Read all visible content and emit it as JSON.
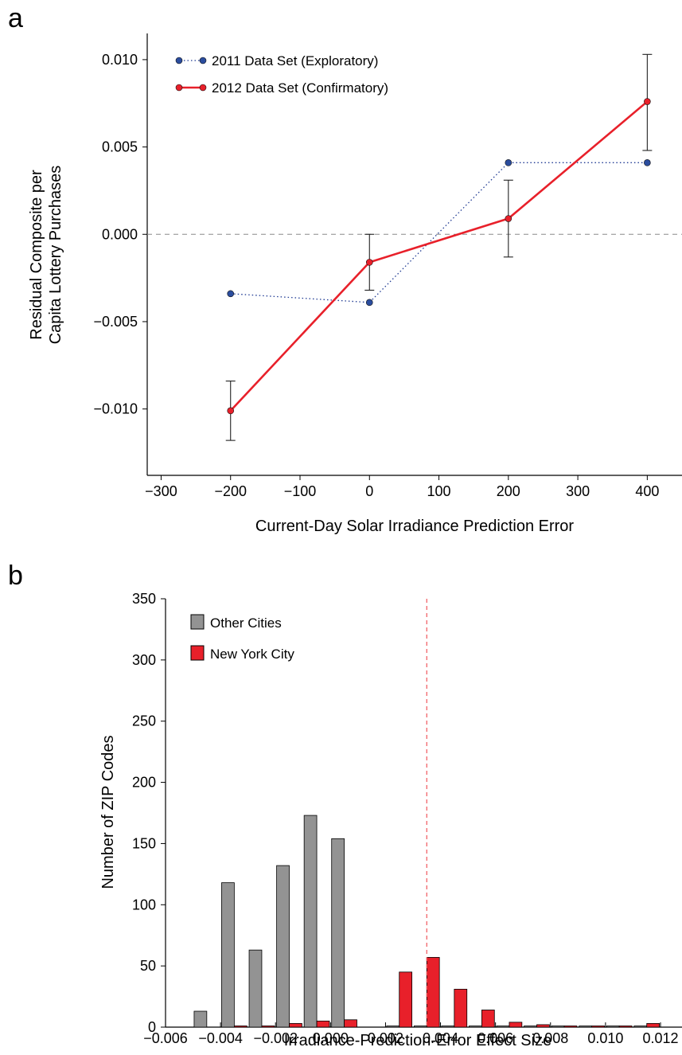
{
  "panel_a": {
    "label": "a",
    "chart_data": {
      "type": "line",
      "xlabel": "Current-Day Solar Irradiance Prediction Error",
      "ylabel": [
        "Residual Composite per",
        "Capita Lottery Purchases"
      ],
      "xlim": [
        -320,
        450
      ],
      "ylim": [
        -0.0138,
        0.0115
      ],
      "x_ticks": [
        -300,
        -200,
        -100,
        0,
        100,
        200,
        300,
        400
      ],
      "x_tick_labels": [
        "−300",
        "−200",
        "−100",
        "0",
        "100",
        "200",
        "300",
        "400"
      ],
      "y_ticks": [
        -0.01,
        -0.005,
        0,
        0.005,
        0.01
      ],
      "y_tick_labels": [
        "−0.010",
        "−0.005",
        "0.000",
        "0.005",
        "0.010"
      ],
      "reference_line_y": 0,
      "legend_position": "top-left",
      "series": [
        {
          "name": "2011 Data Set (Exploratory)",
          "style": "dotted",
          "color": "#1f3a93",
          "marker_fill": "#2b4d9e",
          "x": [
            -200,
            0,
            200,
            400
          ],
          "y": [
            -0.0034,
            -0.0039,
            0.0041,
            0.0041
          ]
        },
        {
          "name": "2012 Data Set (Confirmatory)",
          "style": "solid",
          "color": "#e8202a",
          "marker_fill": "#e8202a",
          "x": [
            -200,
            0,
            200,
            400
          ],
          "y": [
            -0.0101,
            -0.0016,
            0.0009,
            0.0076
          ],
          "err_low": [
            -0.0118,
            -0.0032,
            -0.0013,
            0.0048
          ],
          "err_high": [
            -0.0084,
            0.0,
            0.0031,
            0.0103
          ]
        }
      ]
    }
  },
  "panel_b": {
    "label": "b",
    "chart_data": {
      "type": "bar",
      "xlabel": "Irradiance-Prediction-Error Effect Size",
      "ylabel": "Number of ZIP Codes",
      "xlim": [
        -0.006,
        0.012
      ],
      "ylim": [
        0,
        350
      ],
      "x_ticks": [
        -0.006,
        -0.004,
        -0.002,
        0.0,
        0.002,
        0.004,
        0.006,
        0.008,
        0.01,
        0.012
      ],
      "x_tick_labels": [
        "−0.006",
        "−0.004",
        "−0.002",
        "0.000",
        "0.002",
        "0.004",
        "0.006",
        "0.008",
        "0.010",
        "0.012"
      ],
      "y_ticks": [
        0,
        50,
        100,
        150,
        200,
        250,
        300,
        350
      ],
      "y_tick_labels": [
        "0",
        "50",
        "100",
        "150",
        "200",
        "250",
        "300",
        "350"
      ],
      "reference_line_x": 0.0035,
      "legend_position": "top-left",
      "bin_width": 0.001,
      "bin_centers": [
        -0.0045,
        -0.0035,
        -0.0025,
        -0.0015,
        -0.0005,
        0.0005,
        0.0015,
        0.0025,
        0.0035,
        0.0045,
        0.0055,
        0.0065,
        0.0075,
        0.0085,
        0.0095,
        0.0105,
        0.0115
      ],
      "series": [
        {
          "name": "Other Cities",
          "color": "#939393",
          "values": [
            13,
            118,
            63,
            132,
            173,
            154,
            0,
            1,
            1,
            1,
            1,
            1,
            1,
            1,
            1,
            1,
            1
          ]
        },
        {
          "name": "New York City",
          "color": "#e8202a",
          "values": [
            0,
            1,
            1,
            3,
            5,
            6,
            0,
            45,
            57,
            31,
            14,
            4,
            2,
            1,
            1,
            1,
            3
          ]
        }
      ]
    }
  }
}
